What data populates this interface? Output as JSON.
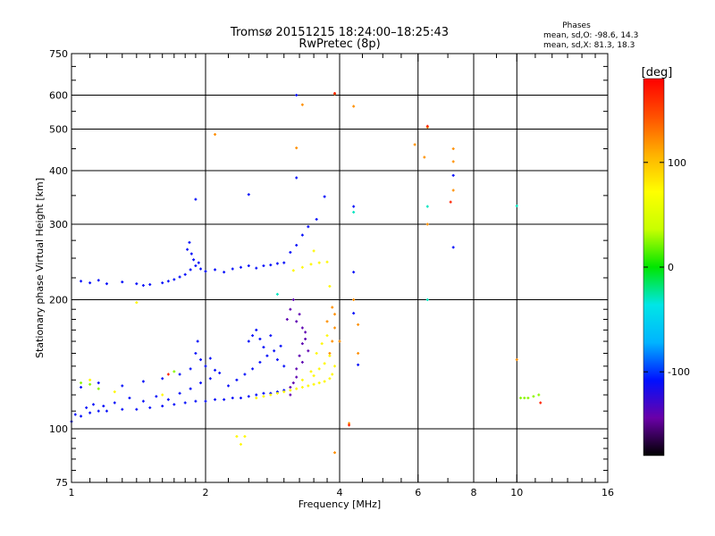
{
  "chart_data": {
    "type": "scatter",
    "title": "Tromsø 20151215 18:24:00–18:25:43",
    "subtitle": "RwPretec (8p)",
    "xlabel": "Frequency [MHz]",
    "ylabel": "Stationary phase Virtual Height [km]",
    "x_scale": "log",
    "y_scale": "log",
    "xlim": [
      1,
      16
    ],
    "ylim": [
      75,
      750
    ],
    "x_ticks": [
      1,
      2,
      4,
      6,
      8,
      10,
      16
    ],
    "y_ticks": [
      75,
      100,
      200,
      300,
      400,
      500,
      600,
      750
    ],
    "grid": true,
    "stats": {
      "header": "Phases",
      "o_line": "mean, sd,O: -98.6, 14.3",
      "x_line": "mean, sd,X:  81.3, 18.3"
    },
    "colorbar": {
      "label": "[deg]",
      "range": [
        -180,
        180
      ],
      "ticks": [
        -100,
        0,
        100
      ],
      "colors": [
        "#000000",
        "#6a00a8",
        "#0010ff",
        "#00b4ff",
        "#00e6e6",
        "#00e600",
        "#c8ff00",
        "#ffff00",
        "#ffb000",
        "#ff5000",
        "#ff0000"
      ]
    },
    "series": [
      {
        "phase_deg": -110,
        "points": [
          [
            1.0,
            104
          ],
          [
            1.05,
            107
          ],
          [
            1.1,
            109
          ],
          [
            1.15,
            110
          ],
          [
            1.2,
            110
          ],
          [
            1.3,
            111
          ],
          [
            1.4,
            111
          ],
          [
            1.5,
            112
          ],
          [
            1.6,
            113
          ],
          [
            1.7,
            114
          ],
          [
            1.8,
            115
          ],
          [
            1.9,
            116
          ],
          [
            2.0,
            116
          ],
          [
            2.1,
            117
          ],
          [
            2.2,
            117
          ],
          [
            2.3,
            118
          ],
          [
            2.4,
            118
          ],
          [
            2.5,
            119
          ],
          [
            2.6,
            120
          ],
          [
            2.7,
            121
          ],
          [
            2.8,
            121
          ],
          [
            2.9,
            122
          ],
          [
            3.0,
            123
          ],
          [
            1.02,
            108
          ],
          [
            1.08,
            112
          ],
          [
            1.12,
            114
          ],
          [
            1.18,
            113
          ],
          [
            1.25,
            115
          ],
          [
            1.35,
            118
          ],
          [
            1.45,
            116
          ],
          [
            1.55,
            119
          ],
          [
            1.65,
            117
          ],
          [
            1.75,
            121
          ],
          [
            1.85,
            124
          ],
          [
            1.95,
            128
          ],
          [
            2.05,
            131
          ],
          [
            2.15,
            135
          ],
          [
            2.25,
            126
          ],
          [
            2.35,
            130
          ],
          [
            2.45,
            134
          ],
          [
            2.55,
            138
          ],
          [
            2.65,
            143
          ],
          [
            2.75,
            148
          ],
          [
            2.85,
            152
          ],
          [
            2.95,
            156
          ],
          [
            1.05,
            125
          ],
          [
            1.15,
            128
          ],
          [
            1.3,
            126
          ],
          [
            1.45,
            129
          ],
          [
            1.6,
            131
          ],
          [
            1.75,
            134
          ],
          [
            1.85,
            138
          ],
          [
            1.9,
            150
          ],
          [
            1.92,
            160
          ],
          [
            1.95,
            145
          ],
          [
            2.0,
            140
          ],
          [
            2.05,
            146
          ],
          [
            2.1,
            137
          ],
          [
            2.5,
            160
          ],
          [
            2.55,
            165
          ],
          [
            2.6,
            170
          ],
          [
            2.65,
            162
          ],
          [
            2.7,
            155
          ],
          [
            2.8,
            165
          ],
          [
            2.9,
            145
          ],
          [
            3.0,
            140
          ],
          [
            1.05,
            221
          ],
          [
            1.1,
            219
          ],
          [
            1.15,
            222
          ],
          [
            1.2,
            218
          ],
          [
            1.3,
            220
          ],
          [
            1.4,
            218
          ],
          [
            1.45,
            216
          ],
          [
            1.5,
            217
          ],
          [
            1.6,
            219
          ],
          [
            1.65,
            221
          ],
          [
            1.7,
            223
          ],
          [
            1.75,
            226
          ],
          [
            1.8,
            229
          ],
          [
            1.85,
            235
          ],
          [
            1.9,
            240
          ],
          [
            1.95,
            236
          ],
          [
            2.0,
            233
          ],
          [
            2.1,
            235
          ],
          [
            2.2,
            232
          ],
          [
            2.3,
            236
          ],
          [
            2.4,
            238
          ],
          [
            2.5,
            240
          ],
          [
            2.6,
            237
          ],
          [
            2.7,
            240
          ],
          [
            2.8,
            241
          ],
          [
            2.9,
            243
          ],
          [
            3.0,
            244
          ],
          [
            1.82,
            262
          ],
          [
            1.84,
            272
          ],
          [
            1.86,
            256
          ],
          [
            1.88,
            248
          ],
          [
            1.93,
            244
          ],
          [
            3.1,
            258
          ],
          [
            3.2,
            268
          ],
          [
            3.3,
            283
          ],
          [
            3.4,
            296
          ],
          [
            3.55,
            308
          ],
          [
            3.7,
            348
          ],
          [
            3.2,
            385
          ],
          [
            3.2,
            600
          ],
          [
            2.5,
            352
          ],
          [
            1.9,
            343
          ],
          [
            4.3,
            330
          ],
          [
            4.3,
            232
          ],
          [
            4.4,
            141
          ],
          [
            4.3,
            186
          ],
          [
            7.2,
            390
          ],
          [
            7.2,
            265
          ]
        ]
      },
      {
        "phase_deg": -140,
        "points": [
          [
            3.1,
            120
          ],
          [
            3.15,
            128
          ],
          [
            3.2,
            138
          ],
          [
            3.25,
            148
          ],
          [
            3.3,
            158
          ],
          [
            3.35,
            168
          ],
          [
            3.2,
            178
          ],
          [
            3.1,
            190
          ],
          [
            3.15,
            200
          ],
          [
            3.05,
            180
          ],
          [
            3.25,
            185
          ],
          [
            3.3,
            172
          ],
          [
            3.35,
            162
          ],
          [
            3.4,
            152
          ],
          [
            3.3,
            143
          ],
          [
            3.2,
            132
          ],
          [
            3.1,
            125
          ]
        ]
      },
      {
        "phase_deg": 75,
        "points": [
          [
            2.6,
            118
          ],
          [
            2.7,
            119
          ],
          [
            2.8,
            120
          ],
          [
            2.9,
            121
          ],
          [
            3.0,
            122
          ],
          [
            3.1,
            123
          ],
          [
            3.2,
            124
          ],
          [
            3.3,
            125
          ],
          [
            3.4,
            126
          ],
          [
            3.5,
            127
          ],
          [
            3.6,
            128
          ],
          [
            3.7,
            129
          ],
          [
            3.8,
            131
          ],
          [
            3.85,
            134
          ],
          [
            3.9,
            140
          ],
          [
            3.5,
            133
          ],
          [
            3.6,
            138
          ],
          [
            3.7,
            142
          ],
          [
            3.8,
            148
          ],
          [
            3.55,
            150
          ],
          [
            3.65,
            158
          ],
          [
            3.75,
            165
          ],
          [
            3.3,
            130
          ],
          [
            3.45,
            136
          ],
          [
            3.15,
            234
          ],
          [
            3.3,
            238
          ],
          [
            3.45,
            242
          ],
          [
            3.6,
            244
          ],
          [
            3.75,
            245
          ],
          [
            2.35,
            96
          ],
          [
            2.4,
            92
          ],
          [
            2.45,
            96
          ],
          [
            1.1,
            130
          ],
          [
            1.25,
            122
          ],
          [
            1.6,
            120
          ],
          [
            1.4,
            197
          ],
          [
            3.5,
            260
          ],
          [
            3.8,
            215
          ]
        ]
      },
      {
        "phase_deg": 120,
        "points": [
          [
            3.8,
            150
          ],
          [
            3.85,
            160
          ],
          [
            3.9,
            172
          ],
          [
            3.9,
            185
          ],
          [
            3.85,
            192
          ],
          [
            3.75,
            178
          ],
          [
            4.0,
            160
          ],
          [
            4.3,
            200
          ],
          [
            4.4,
            175
          ],
          [
            4.4,
            150
          ],
          [
            3.2,
            452
          ],
          [
            3.3,
            570
          ],
          [
            3.9,
            604
          ],
          [
            4.3,
            565
          ],
          [
            2.1,
            486
          ],
          [
            5.9,
            460
          ],
          [
            6.3,
            505
          ],
          [
            6.2,
            430
          ],
          [
            6.3,
            300
          ],
          [
            7.2,
            450
          ],
          [
            7.2,
            420
          ],
          [
            7.2,
            360
          ],
          [
            3.9,
            88
          ],
          [
            4.2,
            103
          ],
          [
            10.0,
            145
          ]
        ]
      },
      {
        "phase_deg": 25,
        "points": [
          [
            10.2,
            118
          ],
          [
            10.4,
            118
          ],
          [
            10.6,
            118
          ],
          [
            10.9,
            119
          ],
          [
            11.2,
            120
          ],
          [
            1.05,
            128
          ],
          [
            1.1,
            127
          ],
          [
            1.15,
            124
          ],
          [
            1.7,
            136
          ]
        ]
      },
      {
        "phase_deg": -30,
        "points": [
          [
            10.0,
            331
          ],
          [
            6.3,
            330
          ],
          [
            6.3,
            200
          ],
          [
            4.3,
            320
          ],
          [
            2.9,
            206
          ]
        ]
      },
      {
        "phase_deg": 165,
        "points": [
          [
            3.9,
            606
          ],
          [
            6.3,
            508
          ],
          [
            7.1,
            338
          ],
          [
            4.2,
            102
          ],
          [
            11.3,
            115
          ],
          [
            1.65,
            134
          ]
        ]
      }
    ]
  }
}
